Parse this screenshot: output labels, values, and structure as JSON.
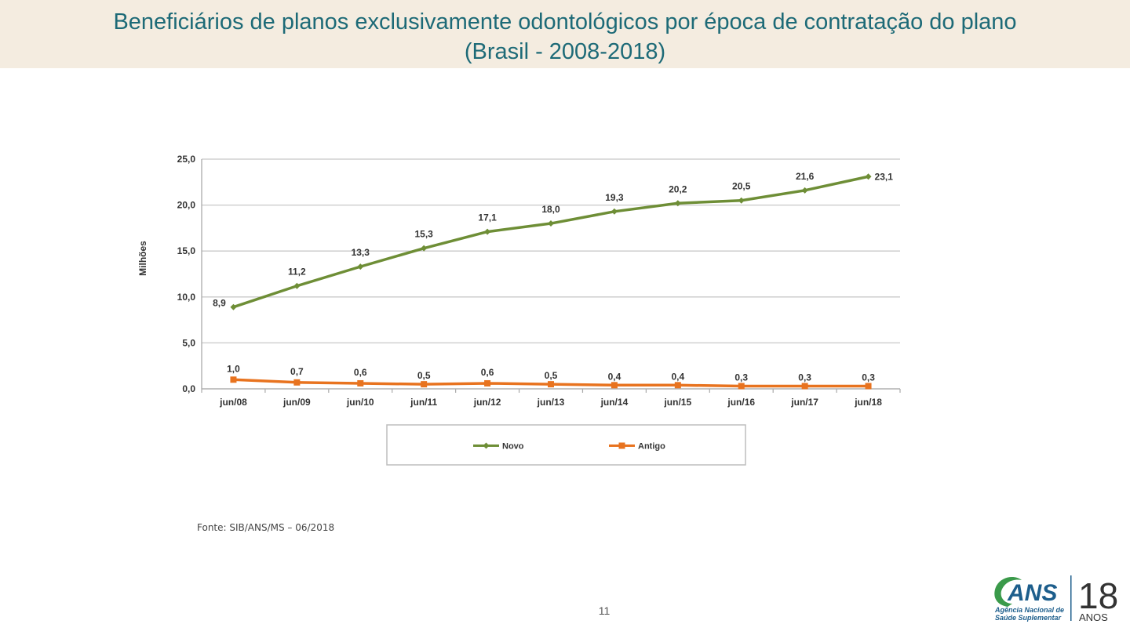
{
  "header": {
    "title_line1": "Beneficiários de planos exclusivamente odontológicos por época de contratação do plano",
    "title_line2": "(Brasil - 2008-2018)"
  },
  "chart_data": {
    "type": "line",
    "title": "Beneficiários de planos exclusivamente odontológicos por época de contratação do plano (Brasil - 2008-2018)",
    "xlabel": "",
    "ylabel": "Milhões",
    "ylim": [
      0,
      25
    ],
    "yticks": [
      0,
      5,
      10,
      15,
      20,
      25
    ],
    "ytick_labels": [
      "0,0",
      "5,0",
      "10,0",
      "15,0",
      "20,0",
      "25,0"
    ],
    "grid": true,
    "legend_position": "bottom",
    "categories": [
      "jun/08",
      "jun/09",
      "jun/10",
      "jun/11",
      "jun/12",
      "jun/13",
      "jun/14",
      "jun/15",
      "jun/16",
      "jun/17",
      "jun/18"
    ],
    "series": [
      {
        "name": "Novo",
        "color": "#6e8e36",
        "marker": "diamond",
        "values": [
          8.9,
          11.2,
          13.3,
          15.3,
          17.1,
          18.0,
          19.3,
          20.2,
          20.5,
          21.6,
          23.1
        ],
        "labels": [
          "8,9",
          "11,2",
          "13,3",
          "15,3",
          "17,1",
          "18,0",
          "19,3",
          "20,2",
          "20,5",
          "21,6",
          "23,1"
        ]
      },
      {
        "name": "Antigo",
        "color": "#e8731f",
        "marker": "square",
        "values": [
          1.0,
          0.7,
          0.6,
          0.5,
          0.6,
          0.5,
          0.4,
          0.4,
          0.3,
          0.3,
          0.3
        ],
        "labels": [
          "1,0",
          "0,7",
          "0,6",
          "0,5",
          "0,6",
          "0,5",
          "0,4",
          "0,4",
          "0,3",
          "0,3",
          "0,3"
        ]
      }
    ]
  },
  "footer": {
    "source": "Fonte: SIB/ANS/MS – 06/2018",
    "page_number": "11"
  },
  "logo": {
    "brand": "ANS",
    "line1": "Agência Nacional de",
    "line2": "Saúde Suplementar",
    "years_number": "18",
    "years_label": "ANOS",
    "brand_color": "#1d5e8c",
    "accent_color": "#3a9a4a"
  }
}
